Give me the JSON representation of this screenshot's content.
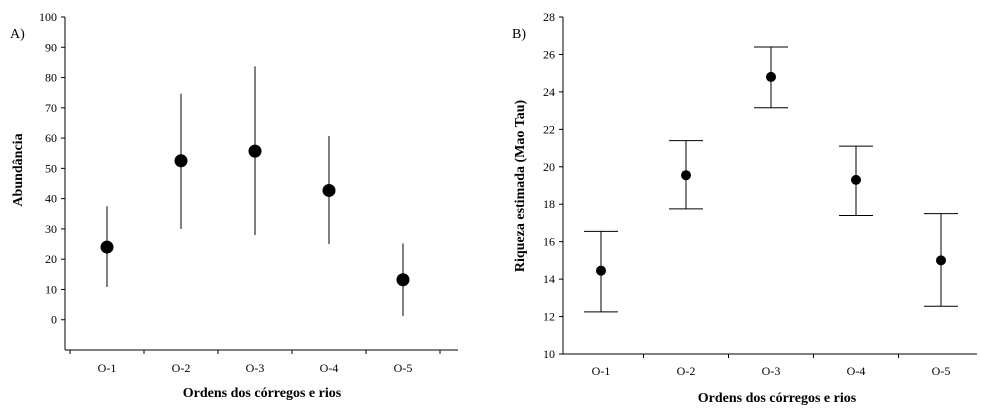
{
  "chart_data": [
    {
      "type": "scatter",
      "panel_label": "A)",
      "xlabel": "Ordens dos córregos e rios",
      "ylabel": "Abundância",
      "categories": [
        "O-1",
        "O-2",
        "O-3",
        "O-4",
        "O-5"
      ],
      "values": [
        24,
        52.5,
        55.7,
        42.7,
        13.2
      ],
      "error_low": [
        10.8,
        30,
        28,
        25,
        1.2
      ],
      "error_high": [
        37.5,
        74.7,
        83.7,
        60.7,
        25.2
      ],
      "ylim": [
        -10,
        100
      ],
      "yticks": [
        0,
        10,
        20,
        30,
        40,
        50,
        60,
        70,
        80,
        90,
        100
      ],
      "error_bar_caps": false,
      "grid": false
    },
    {
      "type": "scatter",
      "panel_label": "B)",
      "xlabel": "Ordens dos córregos e rios",
      "ylabel": "Riqueza estimada (Mao Tau)",
      "categories": [
        "O-1",
        "O-2",
        "O-3",
        "O-4",
        "O-5"
      ],
      "values": [
        14.45,
        19.55,
        24.8,
        19.3,
        15
      ],
      "error_low": [
        12.25,
        17.75,
        23.15,
        17.4,
        12.55
      ],
      "error_high": [
        16.55,
        21.4,
        26.4,
        21.1,
        17.5
      ],
      "ylim": [
        10,
        28
      ],
      "yticks": [
        10,
        12,
        14,
        16,
        18,
        20,
        22,
        24,
        26,
        28
      ],
      "error_bar_caps": true,
      "grid": false
    }
  ]
}
